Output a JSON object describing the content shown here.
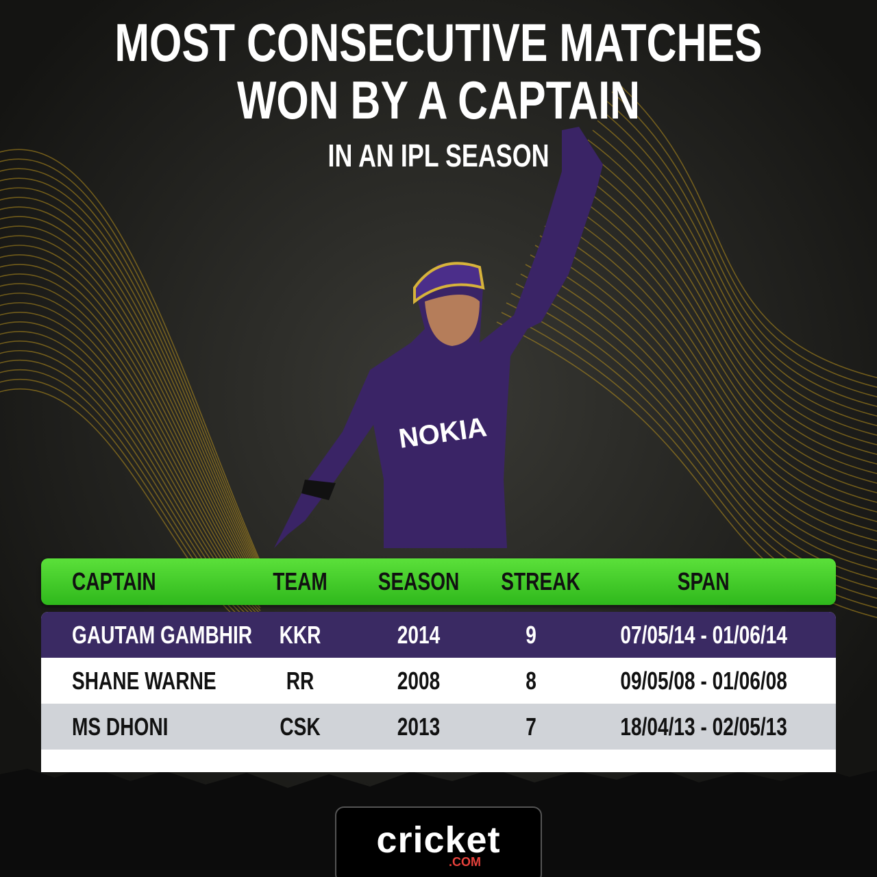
{
  "header": {
    "title_lines": [
      "MOST CONSECUTIVE MATCHES",
      "WON BY A CAPTAIN"
    ],
    "subtitle": "IN AN IPL SEASON"
  },
  "table": {
    "columns": [
      "CAPTAIN",
      "TEAM",
      "SEASON",
      "STREAK",
      "SPAN"
    ],
    "rows": [
      [
        "GAUTAM GAMBHIR",
        "KKR",
        "2014",
        "9",
        "07/05/14 - 01/06/14"
      ],
      [
        "SHANE WARNE",
        "RR",
        "2008",
        "8",
        "09/05/08 - 01/06/08"
      ],
      [
        "MS DHONI",
        "CSK",
        "2013",
        "7",
        "18/04/13 - 02/05/13"
      ]
    ]
  },
  "logo": {
    "name": "cricket",
    "domain": ".COM"
  }
}
